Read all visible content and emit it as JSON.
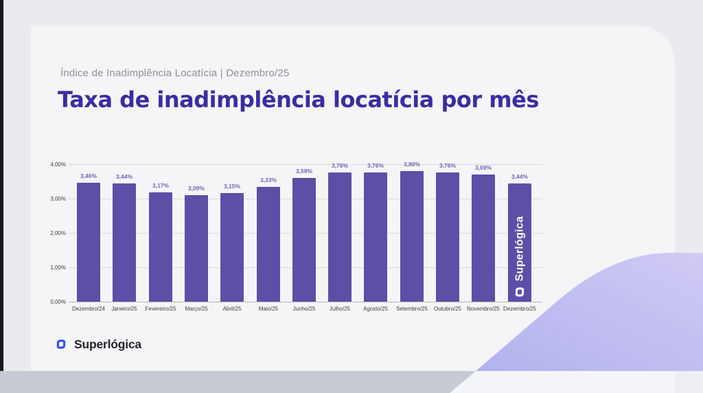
{
  "page": {
    "eyebrow": "Índice de Inadimplência Locatícia | Dezembro/25",
    "title": "Taxa de inadimplência locatícia por mês"
  },
  "branding": {
    "logo_text": "Superlógica",
    "watermark_text": "Superlógica"
  },
  "colors": {
    "title_purple": "#3b2da1",
    "bar_purple": "#5e4ea6",
    "value_label_purple": "#6f63b8",
    "brand_blue": "#2b50f0",
    "lavender_start": "#b1b2ee",
    "lavender_end": "#d0caf4"
  },
  "chart_data": {
    "type": "bar",
    "title": "Taxa de inadimplência locatícia por mês",
    "categories": [
      "Dezembro/24",
      "Janeiro/25",
      "Fevereiro/25",
      "Março/25",
      "Abril/25",
      "Maio/25",
      "Junho/25",
      "Julho/25",
      "Agosto/25",
      "Setembro/25",
      "Outubro/25",
      "Novembro/25",
      "Dezembro/25"
    ],
    "values": [
      3.46,
      3.44,
      3.17,
      3.09,
      3.15,
      3.33,
      3.59,
      3.76,
      3.76,
      3.8,
      3.76,
      3.69,
      3.44
    ],
    "labels": [
      "3,46%",
      "3,44%",
      "3,17%",
      "3,09%",
      "3,15%",
      "3,33%",
      "3,59%",
      "3,76%",
      "3,76%",
      "3,80%",
      "3,76%",
      "3,69%",
      "3,44%"
    ],
    "xlabel": "",
    "ylabel": "",
    "ylim": [
      0,
      4
    ],
    "y_ticks": [
      "4,00%",
      "3,00%",
      "2,00%",
      "1,00%",
      "0,00%"
    ],
    "grid": true,
    "legend": false
  }
}
